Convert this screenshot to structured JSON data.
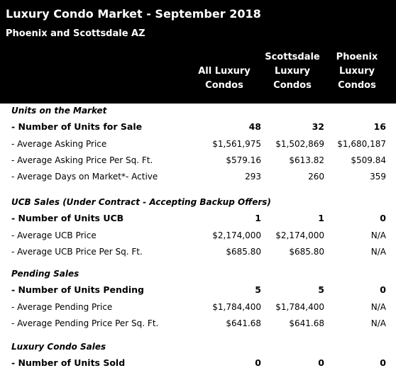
{
  "header": {
    "title": "Luxury Condo Market - September 2018",
    "subtitle": "Phoenix and Scottsdale AZ"
  },
  "table": {
    "columns": [
      [
        "All Luxury",
        "Condos"
      ],
      [
        "Scottsdale",
        "Luxury",
        "Condos"
      ],
      [
        "Phoenix",
        "Luxury",
        "Condos"
      ]
    ],
    "sections": [
      {
        "title": "Units on the Market",
        "rows": [
          [
            "- Number of Units for Sale",
            "48",
            "32",
            "16"
          ],
          [
            "- Average Asking Price",
            "$1,561,975",
            "$1,502,869",
            "$1,680,187"
          ],
          [
            "- Average Asking Price Per Sq. Ft.",
            "$579.16",
            "$613.82",
            "$509.84"
          ],
          [
            "- Average Days on Market*- Active",
            "293",
            "260",
            "359"
          ]
        ]
      },
      {
        "title": "UCB Sales (Under Contract - Accepting Backup Offers)",
        "rows": [
          [
            "- Number of Units UCB",
            "1",
            "1",
            "0"
          ],
          [
            "- Average UCB Price",
            "$2,174,000",
            "$2,174,000",
            "N/A"
          ],
          [
            "- Average UCB Price Per Sq. Ft.",
            "$685.80",
            "$685.80",
            "N/A"
          ]
        ]
      },
      {
        "title": "Pending Sales",
        "rows": [
          [
            "- Number of Units Pending",
            "5",
            "5",
            "0"
          ],
          [
            "- Average Pending Price",
            "$1,784,400",
            "$1,784,400",
            "N/A"
          ],
          [
            "- Average Pending Price Per Sq. Ft.",
            "$641.68",
            "$641.68",
            "N/A"
          ]
        ]
      },
      {
        "title": "Luxury Condo Sales",
        "rows": [
          [
            "- Number of Units Sold",
            "0",
            "0",
            "0"
          ]
        ]
      }
    ]
  }
}
